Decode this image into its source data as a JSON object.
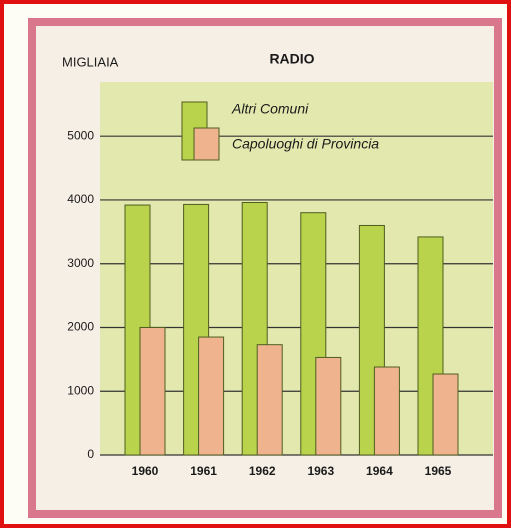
{
  "chart_data": {
    "type": "bar",
    "title": "RADIO",
    "y_label": "MIGLIAIA",
    "categories": [
      "1960",
      "1961",
      "1962",
      "1963",
      "1964",
      "1965"
    ],
    "series": [
      {
        "name": "Altri Comuni",
        "color": "#b9d34c",
        "values": [
          3920,
          3930,
          3960,
          3800,
          3600,
          3420
        ]
      },
      {
        "name": "Capoluoghi di Provincia",
        "color": "#efb48e",
        "values": [
          2000,
          1850,
          1730,
          1530,
          1380,
          1270
        ]
      }
    ],
    "ylim": [
      0,
      5850
    ],
    "yticks": [
      0,
      1000,
      2000,
      3000,
      4000,
      5000
    ],
    "grid": true,
    "legend": "top"
  }
}
